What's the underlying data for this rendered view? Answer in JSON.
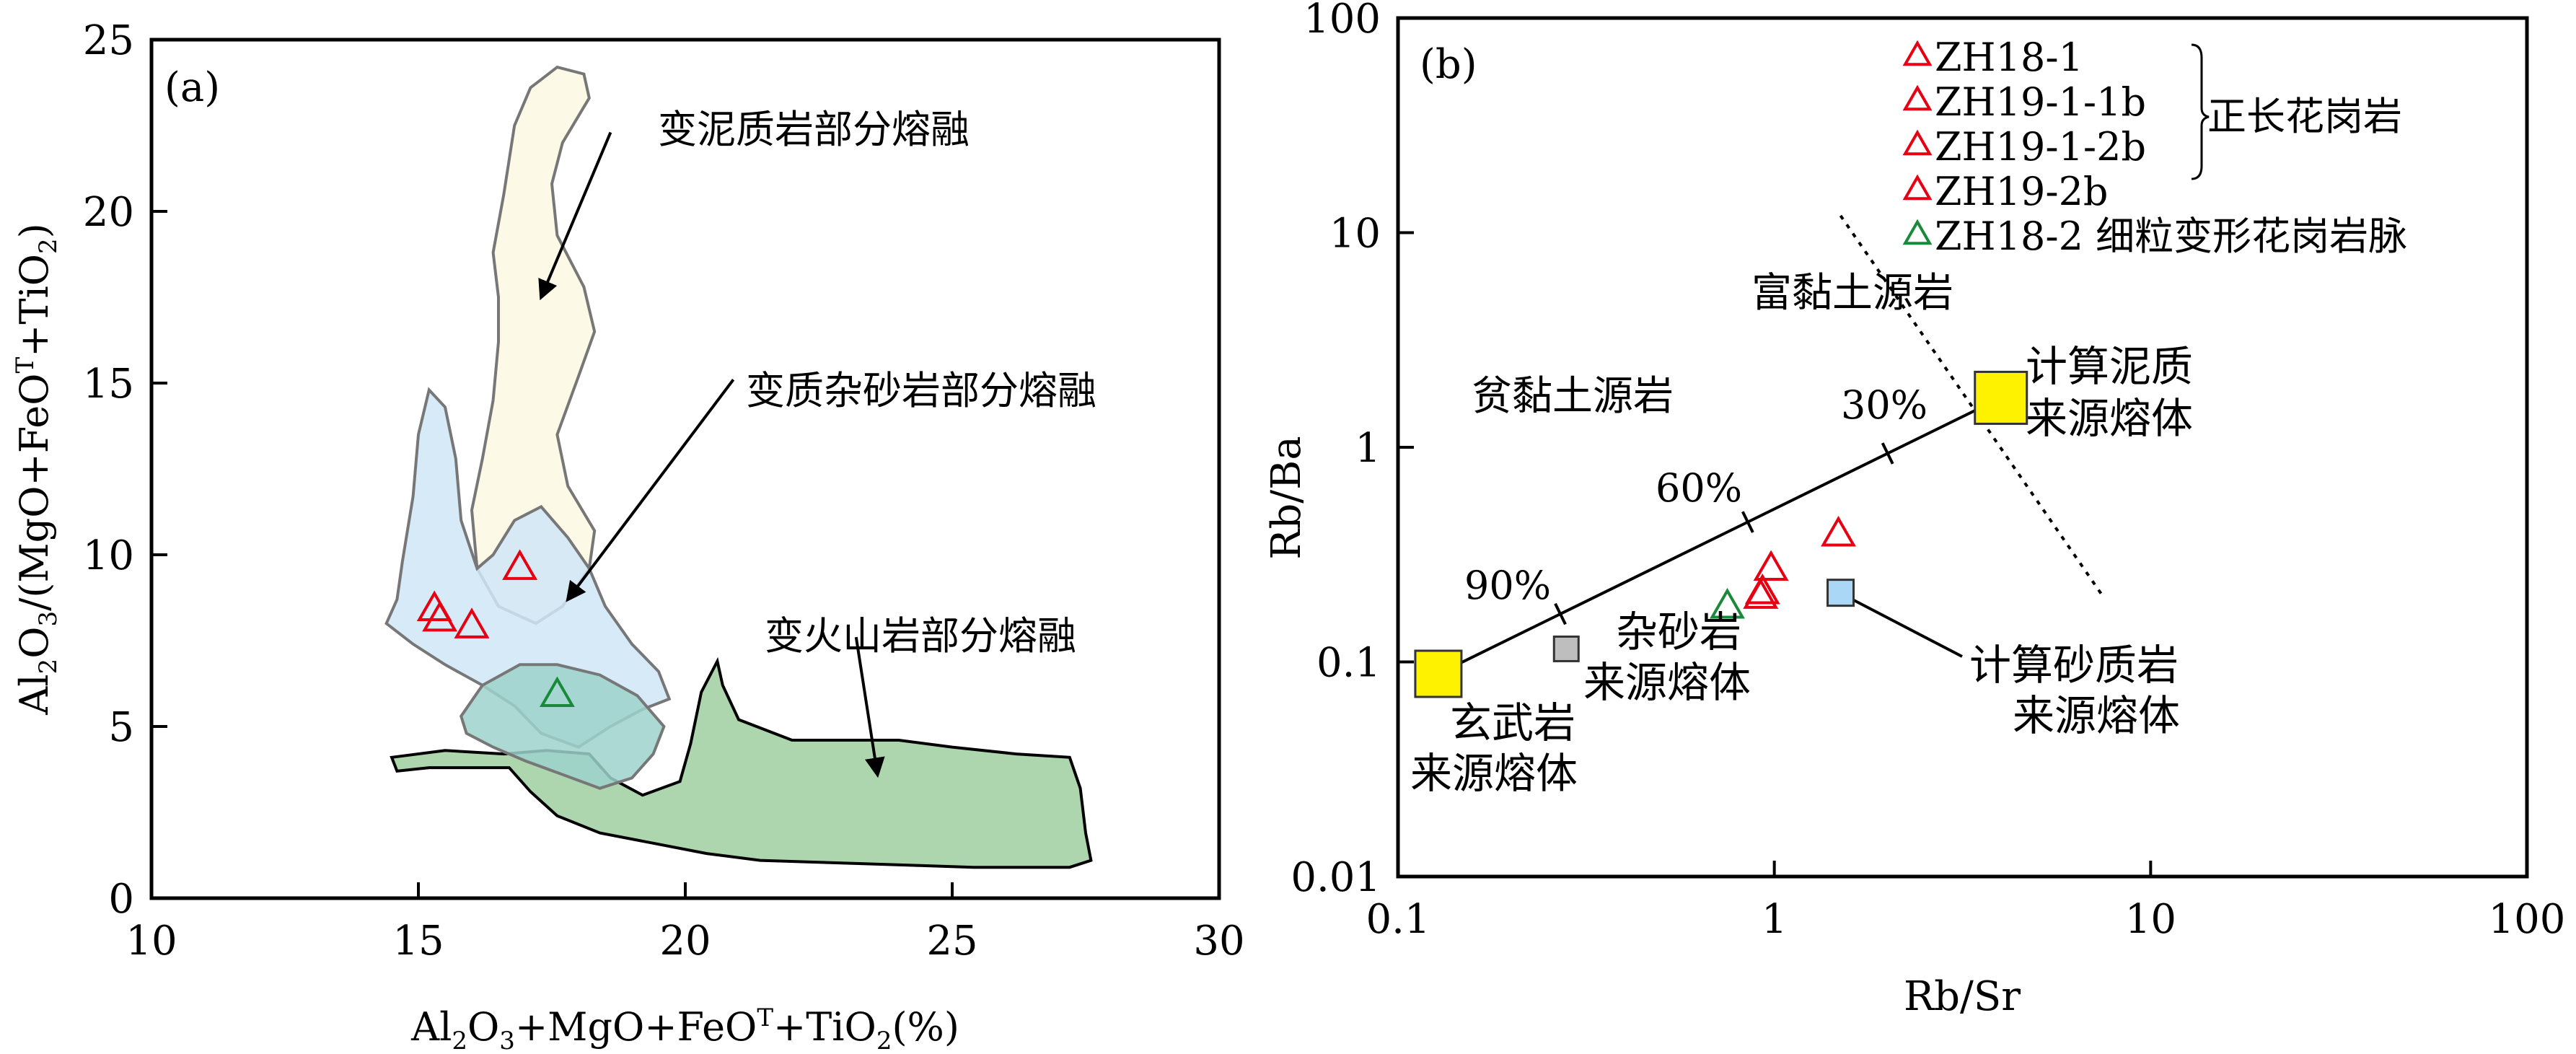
{
  "chart_data": [
    {
      "panel_label": "(a)",
      "type": "scatter",
      "xlabel_parts": [
        "Al",
        "2",
        "O",
        "3",
        "+MgO+FeO",
        "T",
        "+TiO",
        "2",
        "(%)"
      ],
      "ylabel_parts": [
        "Al",
        "2",
        "O",
        "3",
        "/(MgO+FeO",
        "T",
        "+TiO",
        "2",
        ")"
      ],
      "xlim": [
        10,
        30
      ],
      "ylim": [
        0,
        25
      ],
      "xticks": [
        10,
        15,
        20,
        25,
        30
      ],
      "yticks": [
        0,
        5,
        10,
        15,
        20,
        25
      ],
      "regions": [
        {
          "label": "变泥质岩部分熔融",
          "fill": "#fbf8e2",
          "points": [
            [
              16.6,
              20.5
            ],
            [
              16.8,
              22.5
            ],
            [
              17.1,
              23.6
            ],
            [
              17.6,
              24.2
            ],
            [
              18.1,
              24.0
            ],
            [
              18.2,
              23.3
            ],
            [
              17.7,
              22.0
            ],
            [
              17.5,
              20.8
            ],
            [
              17.6,
              19.3
            ],
            [
              18.1,
              17.8
            ],
            [
              18.3,
              16.5
            ],
            [
              18.0,
              15.2
            ],
            [
              17.6,
              13.5
            ],
            [
              17.8,
              12.0
            ],
            [
              18.3,
              10.7
            ],
            [
              18.2,
              9.6
            ],
            [
              17.7,
              8.5
            ],
            [
              17.2,
              8.0
            ],
            [
              16.5,
              8.5
            ],
            [
              16.1,
              9.6
            ],
            [
              16.0,
              11.3
            ],
            [
              16.2,
              12.8
            ],
            [
              16.4,
              14.5
            ],
            [
              16.5,
              16.2
            ],
            [
              16.5,
              17.5
            ],
            [
              16.4,
              18.8
            ]
          ],
          "arrow_from": [
            18.6,
            22.3
          ],
          "arrow_to": [
            17.3,
            17.5
          ]
        },
        {
          "label": "变质杂砂岩部分熔融",
          "fill": "#cfe6f7",
          "points": [
            [
              14.4,
              8.0
            ],
            [
              14.9,
              7.4
            ],
            [
              15.5,
              6.8
            ],
            [
              16.2,
              6.2
            ],
            [
              16.8,
              5.6
            ],
            [
              17.3,
              4.8
            ],
            [
              18.0,
              4.4
            ],
            [
              18.6,
              5.0
            ],
            [
              19.2,
              5.5
            ],
            [
              19.7,
              5.8
            ],
            [
              19.5,
              6.6
            ],
            [
              19.0,
              7.4
            ],
            [
              18.5,
              8.5
            ],
            [
              18.2,
              9.6
            ],
            [
              17.8,
              10.5
            ],
            [
              17.3,
              11.4
            ],
            [
              16.8,
              11.0
            ],
            [
              16.4,
              10.0
            ],
            [
              16.1,
              9.6
            ],
            [
              15.8,
              11.0
            ],
            [
              15.7,
              12.8
            ],
            [
              15.5,
              14.3
            ],
            [
              15.2,
              14.8
            ],
            [
              15.0,
              13.5
            ],
            [
              14.9,
              11.7
            ],
            [
              14.7,
              9.8
            ],
            [
              14.6,
              8.7
            ]
          ],
          "arrow_from": [
            20.9,
            15.1
          ],
          "arrow_to": [
            17.8,
            8.7
          ]
        },
        {
          "label": "变火山岩部分熔融",
          "fill": "#9fcfa0",
          "points": [
            [
              14.5,
              4.1
            ],
            [
              15.5,
              4.3
            ],
            [
              16.6,
              4.2
            ],
            [
              17.4,
              4.3
            ],
            [
              18.2,
              4.2
            ],
            [
              18.6,
              3.5
            ],
            [
              19.2,
              3.0
            ],
            [
              19.9,
              3.4
            ],
            [
              20.1,
              4.5
            ],
            [
              20.3,
              6.0
            ],
            [
              20.6,
              6.9
            ],
            [
              20.7,
              6.2
            ],
            [
              21.0,
              5.2
            ],
            [
              22.0,
              4.6
            ],
            [
              23.0,
              4.6
            ],
            [
              24.0,
              4.6
            ],
            [
              25.0,
              4.4
            ],
            [
              26.2,
              4.2
            ],
            [
              27.2,
              4.1
            ],
            [
              27.4,
              3.2
            ],
            [
              27.5,
              1.9
            ],
            [
              27.6,
              1.1
            ],
            [
              27.2,
              0.9
            ],
            [
              26.4,
              0.9
            ],
            [
              25.4,
              0.9
            ],
            [
              24.4,
              0.95
            ],
            [
              23.4,
              1.0
            ],
            [
              22.4,
              1.05
            ],
            [
              21.4,
              1.1
            ],
            [
              20.4,
              1.3
            ],
            [
              19.4,
              1.6
            ],
            [
              18.4,
              1.9
            ],
            [
              17.6,
              2.4
            ],
            [
              17.1,
              3.1
            ],
            [
              16.7,
              3.8
            ],
            [
              16.0,
              3.8
            ],
            [
              15.2,
              3.8
            ],
            [
              14.6,
              3.7
            ]
          ],
          "arrow_from": [
            23.2,
            7.6
          ],
          "arrow_to": [
            23.6,
            3.6
          ]
        },
        {
          "label": "",
          "fill": "#9ed2cb",
          "points": [
            [
              15.8,
              5.3
            ],
            [
              16.2,
              6.2
            ],
            [
              16.9,
              6.8
            ],
            [
              17.6,
              6.8
            ],
            [
              18.4,
              6.5
            ],
            [
              19.1,
              5.9
            ],
            [
              19.6,
              5.0
            ],
            [
              19.4,
              4.2
            ],
            [
              19.0,
              3.5
            ],
            [
              18.4,
              3.2
            ],
            [
              17.7,
              3.6
            ],
            [
              17.0,
              4.0
            ],
            [
              16.4,
              4.4
            ],
            [
              15.9,
              4.8
            ]
          ]
        }
      ],
      "points": [
        {
          "x": 15.3,
          "y": 8.4,
          "color": "#e60012"
        },
        {
          "x": 15.4,
          "y": 8.1,
          "color": "#e60012"
        },
        {
          "x": 16.0,
          "y": 7.9,
          "color": "#e60012"
        },
        {
          "x": 16.9,
          "y": 9.6,
          "color": "#e60012"
        },
        {
          "x": 17.6,
          "y": 5.9,
          "color": "#1a8a3a"
        }
      ]
    },
    {
      "panel_label": "(b)",
      "type": "scatter",
      "xscale": "log",
      "yscale": "log",
      "xlabel": "Rb/Sr",
      "ylabel": "Rb/Ba",
      "xlim": [
        0.1,
        100
      ],
      "ylim": [
        0.01,
        100
      ],
      "xtick_labels": [
        "0.1",
        "1",
        "10",
        "100"
      ],
      "ytick_labels": [
        "0.01",
        "0.1",
        "1",
        "10",
        "100"
      ],
      "legend": {
        "entries": [
          {
            "label": "ZH18-1",
            "color": "#e60012"
          },
          {
            "label": "ZH19-1-1b",
            "color": "#e60012"
          },
          {
            "label": "ZH19-1-2b",
            "color": "#e60012"
          },
          {
            "label": "ZH19-2b",
            "color": "#e60012"
          },
          {
            "label": "ZH18-2 细粒变形花岗岩脉",
            "color": "#1a8a3a"
          }
        ],
        "group_label": "正长花岗岩"
      },
      "mixing_line": {
        "from": [
          0.128,
          0.088
        ],
        "to": [
          4.0,
          1.7
        ],
        "tick_labels": [
          "90%",
          "60%",
          "30%"
        ],
        "tick_positions": [
          0.27,
          0.85,
          2.0
        ]
      },
      "dotted_line": {
        "from": [
          1.5,
          12
        ],
        "to": [
          7.5,
          0.2
        ]
      },
      "end_members": [
        {
          "lines": [
            "计算泥质",
            "来源熔体"
          ],
          "x": 4.0,
          "y": 1.7,
          "color": "#fff200"
        },
        {
          "lines": [
            "玄武岩",
            "来源熔体"
          ],
          "x": 0.128,
          "y": 0.088,
          "color": "#fff200"
        },
        {
          "lines": [
            "杂砂岩",
            "来源熔体"
          ],
          "x": 0.28,
          "y": 0.115,
          "color": "#bebebe"
        },
        {
          "lines": [
            "计算砂质岩",
            "来源熔体"
          ],
          "x": 1.5,
          "y": 0.21,
          "color": "#a9d7f5"
        }
      ],
      "field_labels": [
        "富黏土源岩",
        "贫黏土源岩"
      ],
      "points": [
        {
          "x": 0.93,
          "y": 0.21,
          "color": "#e60012"
        },
        {
          "x": 0.92,
          "y": 0.2,
          "color": "#e60012"
        },
        {
          "x": 0.98,
          "y": 0.27,
          "color": "#e60012"
        },
        {
          "x": 1.48,
          "y": 0.39,
          "color": "#e60012"
        },
        {
          "x": 0.75,
          "y": 0.18,
          "color": "#1a8a3a"
        }
      ]
    }
  ]
}
